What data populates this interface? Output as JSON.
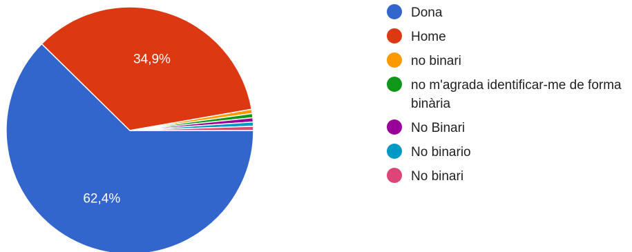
{
  "chart_data": {
    "type": "pie",
    "title": "",
    "slices": [
      {
        "label": "Dona",
        "value": 62.4,
        "display": "62,4%",
        "color": "#3366cc"
      },
      {
        "label": "Home",
        "value": 34.9,
        "display": "34,9%",
        "color": "#dc3912"
      },
      {
        "label": "no binari",
        "value": 0.55,
        "display": "",
        "color": "#ff9900"
      },
      {
        "label": "no m'agrada identificar-me de forma binària",
        "value": 0.55,
        "display": "",
        "color": "#109618"
      },
      {
        "label": "No Binari",
        "value": 0.55,
        "display": "",
        "color": "#990099"
      },
      {
        "label": "No binario",
        "value": 0.55,
        "display": "",
        "color": "#0099c6"
      },
      {
        "label": "No binari",
        "value": 0.55,
        "display": "",
        "color": "#dd4477"
      }
    ],
    "legend_position": "right"
  }
}
